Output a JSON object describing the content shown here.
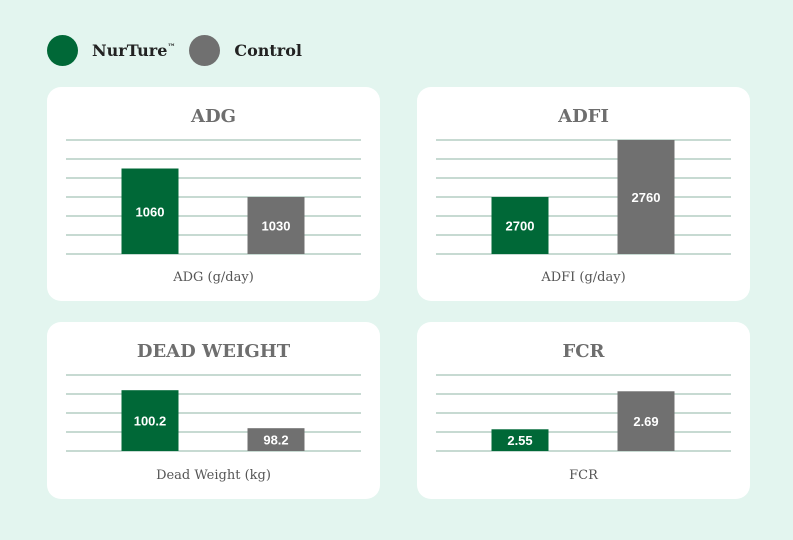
{
  "legend": {
    "items": [
      {
        "label": "NurTure",
        "mark": "™",
        "color": "#006837"
      },
      {
        "label": "Control",
        "mark": "",
        "color": "#707070"
      }
    ]
  },
  "colors": {
    "nurture": "#006837",
    "control": "#707070",
    "gridline": "#8fb5a6",
    "background": "#e3f5ef"
  },
  "chart_data": [
    {
      "type": "bar",
      "title": "ADG",
      "xlabel": "ADG (g/day)",
      "categories": [
        "NurTure™",
        "Control"
      ],
      "values": [
        1060,
        1030
      ],
      "value_labels": [
        "1060",
        "1030"
      ],
      "ylim": [
        970,
        1090
      ],
      "gridlines": 7
    },
    {
      "type": "bar",
      "title": "ADFI",
      "xlabel": "ADFI (g/day)",
      "categories": [
        "NurTure™",
        "Control"
      ],
      "values": [
        2700,
        2760
      ],
      "value_labels": [
        "2700",
        "2760"
      ],
      "ylim": [
        2640,
        2760
      ],
      "gridlines": 7
    },
    {
      "type": "bar",
      "title": "DEAD WEIGHT",
      "xlabel": "Dead Weight (kg)",
      "categories": [
        "NurTure™",
        "Control"
      ],
      "values": [
        100.2,
        98.2
      ],
      "value_labels": [
        "100.2",
        "98.2"
      ],
      "ylim": [
        97,
        101
      ],
      "gridlines": 5
    },
    {
      "type": "bar",
      "title": "FCR",
      "xlabel": "FCR",
      "categories": [
        "NurTure™",
        "Control"
      ],
      "values": [
        2.55,
        2.69
      ],
      "value_labels": [
        "2.55",
        "2.69"
      ],
      "ylim": [
        2.47,
        2.75
      ],
      "gridlines": 5
    }
  ]
}
